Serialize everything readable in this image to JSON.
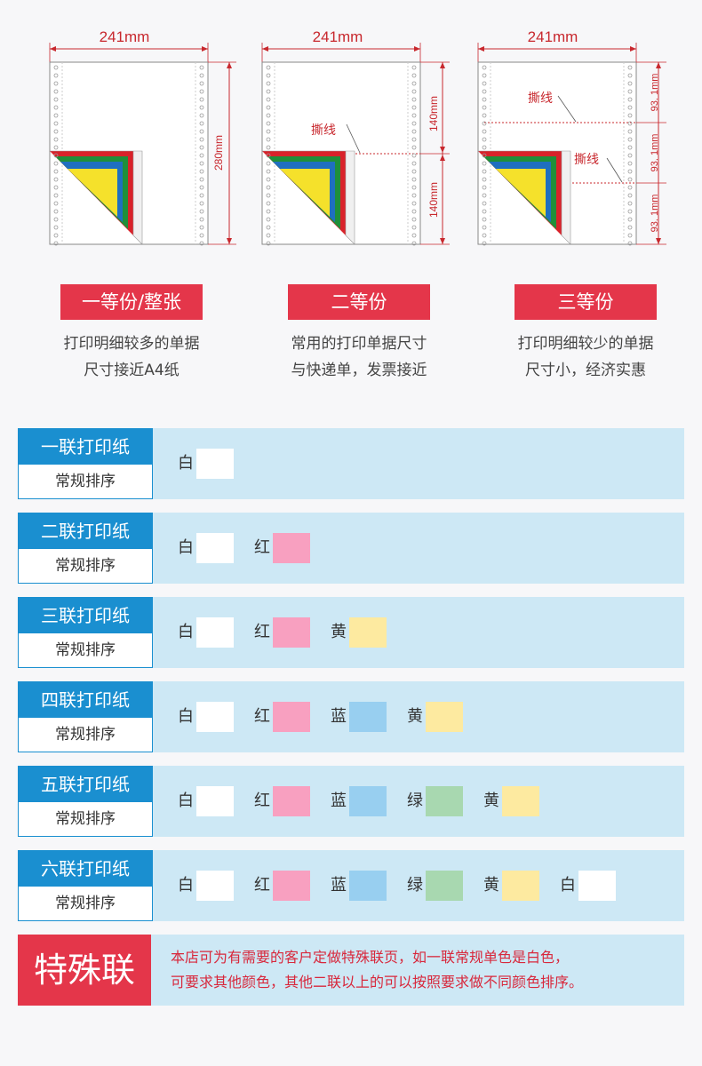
{
  "diagrams": [
    {
      "width": "241mm",
      "height_labels": [
        "280mm"
      ]
    },
    {
      "width": "241mm",
      "tear_label": "撕线",
      "height_labels": [
        "140mm",
        "140mm"
      ]
    },
    {
      "width": "241mm",
      "tear_labels": [
        "撕线",
        "撕线"
      ],
      "height_labels": [
        "93. 1mm",
        "93. 1mm",
        "93. 1mm"
      ]
    }
  ],
  "variants": [
    {
      "title": "一等份/整张",
      "desc1": "打印明细较多的单据",
      "desc2": "尺寸接近A4纸"
    },
    {
      "title": "二等份",
      "desc1": "常用的打印单据尺寸",
      "desc2": "与快递单，发票接近"
    },
    {
      "title": "三等份",
      "desc1": "打印明细较少的单据",
      "desc2": "尺寸小，经济实惠"
    }
  ],
  "rows": [
    {
      "title": "一联打印纸",
      "subtitle": "常规排序",
      "colors": [
        {
          "name": "白",
          "hex": "#ffffff"
        }
      ]
    },
    {
      "title": "二联打印纸",
      "subtitle": "常规排序",
      "colors": [
        {
          "name": "白",
          "hex": "#ffffff"
        },
        {
          "name": "红",
          "hex": "#f8a0c0"
        }
      ]
    },
    {
      "title": "三联打印纸",
      "subtitle": "常规排序",
      "colors": [
        {
          "name": "白",
          "hex": "#ffffff"
        },
        {
          "name": "红",
          "hex": "#f8a0c0"
        },
        {
          "name": "黄",
          "hex": "#fdeaa0"
        }
      ]
    },
    {
      "title": "四联打印纸",
      "subtitle": "常规排序",
      "colors": [
        {
          "name": "白",
          "hex": "#ffffff"
        },
        {
          "name": "红",
          "hex": "#f8a0c0"
        },
        {
          "name": "蓝",
          "hex": "#98cff0"
        },
        {
          "name": "黄",
          "hex": "#fdeaa0"
        }
      ]
    },
    {
      "title": "五联打印纸",
      "subtitle": "常规排序",
      "colors": [
        {
          "name": "白",
          "hex": "#ffffff"
        },
        {
          "name": "红",
          "hex": "#f8a0c0"
        },
        {
          "name": "蓝",
          "hex": "#98cff0"
        },
        {
          "name": "绿",
          "hex": "#a8d8b0"
        },
        {
          "name": "黄",
          "hex": "#fdeaa0"
        }
      ]
    },
    {
      "title": "六联打印纸",
      "subtitle": "常规排序",
      "colors": [
        {
          "name": "白",
          "hex": "#ffffff"
        },
        {
          "name": "红",
          "hex": "#f8a0c0"
        },
        {
          "name": "蓝",
          "hex": "#98cff0"
        },
        {
          "name": "绿",
          "hex": "#a8d8b0"
        },
        {
          "name": "黄",
          "hex": "#fdeaa0"
        },
        {
          "name": "白",
          "hex": "#ffffff"
        }
      ]
    }
  ],
  "special": {
    "title": "特殊联",
    "line1": "本店可为有需要的客户定做特殊联页，如一联常规单色是白色，",
    "line2": "可要求其他颜色，其他二联以上的可以按照要求做不同颜色排序。"
  }
}
